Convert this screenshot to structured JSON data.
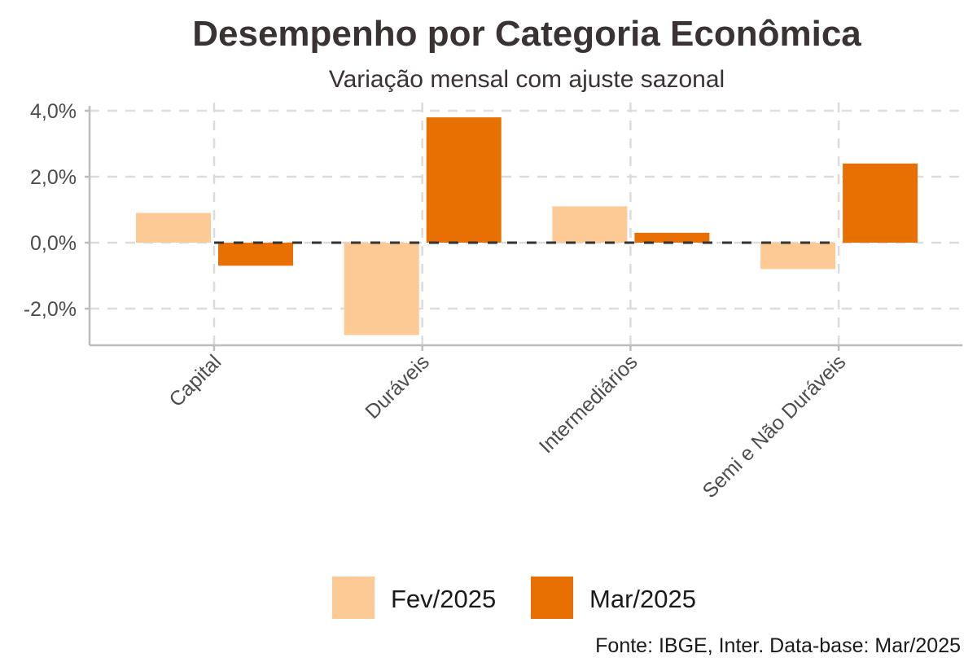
{
  "chart_data": {
    "type": "bar",
    "title": "Desempenho por Categoria Econômica",
    "subtitle": "Variação mensal com ajuste sazonal",
    "xlabel": "",
    "ylabel": "",
    "categories": [
      "Capital",
      "Duráveis",
      "Intermediários",
      "Semi e Não Duráveis"
    ],
    "series": [
      {
        "name": "Fev/2025",
        "color": "#FDC994",
        "values": [
          0.9,
          -2.8,
          1.1,
          -0.8
        ]
      },
      {
        "name": "Mar/2025",
        "color": "#E87003",
        "values": [
          -0.7,
          3.8,
          0.3,
          2.4
        ]
      }
    ],
    "ylim": [
      -3.1,
      4.1
    ],
    "yticks": [
      -2,
      0,
      2,
      4
    ],
    "ytick_labels": [
      "-2,0%",
      "0,0%",
      "2,0%",
      "4,0%"
    ],
    "grid": true,
    "zero_line": "dashed",
    "legend_position": "bottom",
    "caption": "Fonte: IBGE, Inter. Data-base: Mar/2025"
  }
}
